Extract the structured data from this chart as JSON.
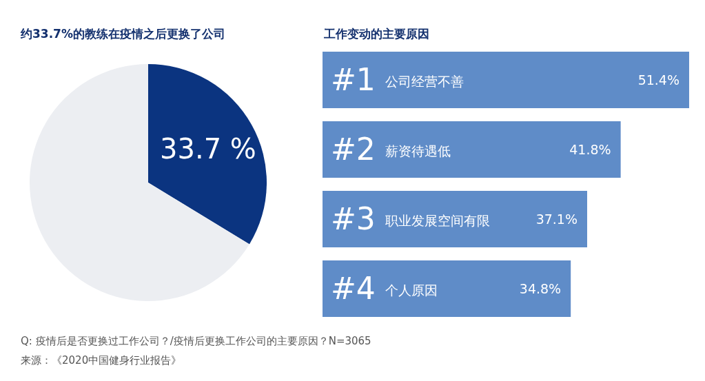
{
  "chart_data": [
    {
      "type": "pie",
      "title": "约33.7%的教练在疫情之后更换了公司",
      "categories": [
        null,
        null
      ],
      "values": [
        33.7,
        66.3
      ],
      "colors": [
        "#0b3480",
        "#eceef2"
      ],
      "value_labels": [
        "33.7 %",
        null
      ],
      "annotations": [
        "Q: 疫情后是否更换过工作公司？/疫情后更换工作公司的主要原因？N=3065",
        "来源：《2020中国健身行业报告》"
      ]
    },
    {
      "type": "bar",
      "orientation": "horizontal",
      "title": "工作变动的主要原因",
      "categories": [
        "#1 公司经营不善",
        "#2 薪资待遇低",
        "#3 职业发展空间有限",
        "#4 个人原因"
      ],
      "values": [
        51.4,
        41.8,
        37.1,
        34.8
      ],
      "color": "#5f8cc8",
      "value_labels": [
        "51.4%",
        "41.8%",
        "37.1%",
        "34.8%"
      ]
    }
  ]
}
